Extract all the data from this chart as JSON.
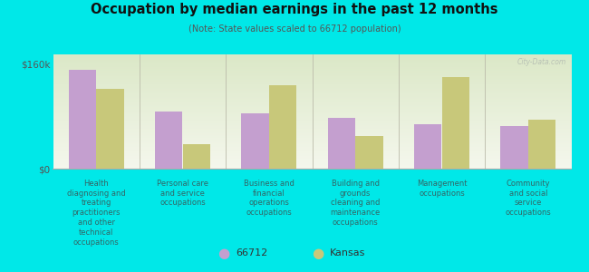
{
  "title": "Occupation by median earnings in the past 12 months",
  "subtitle": "(Note: State values scaled to 66712 population)",
  "categories": [
    "Health\ndiagnosing and\ntreating\npractitioners\nand other\ntechnical\noccupations",
    "Personal care\nand service\noccupations",
    "Business and\nfinancial\noperations\noccupations",
    "Building and\ngrounds\ncleaning and\nmaintenance\noccupations",
    "Management\noccupations",
    "Community\nand social\nservice\noccupations"
  ],
  "values_66712": [
    152000,
    88000,
    85000,
    78000,
    68000,
    65000
  ],
  "values_kansas": [
    122000,
    38000,
    128000,
    50000,
    140000,
    75000
  ],
  "color_66712": "#c49fcf",
  "color_kansas": "#c8c87a",
  "background_color": "#00e8e8",
  "plot_bg_top": "#e8f0d8",
  "plot_bg_bottom": "#f5f8ee",
  "ylim": [
    0,
    175000
  ],
  "yticks": [
    0,
    160000
  ],
  "ytick_labels": [
    "$0",
    "$160k"
  ],
  "legend_label_66712": "66712",
  "legend_label_kansas": "Kansas",
  "watermark": "City-Data.com"
}
